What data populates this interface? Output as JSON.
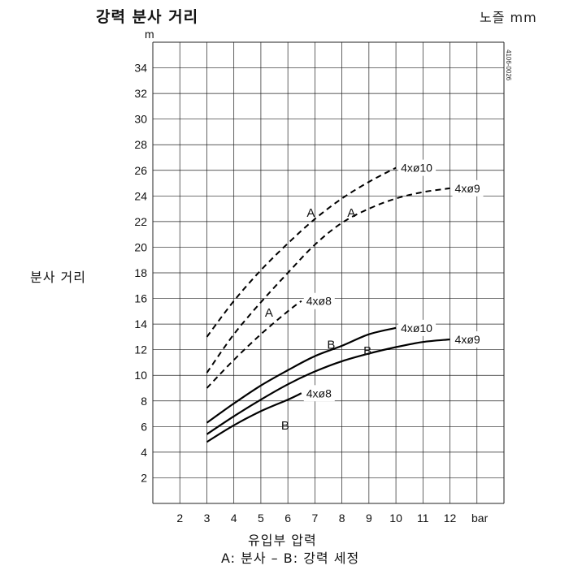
{
  "title": "강력 분사 거리",
  "unit_note": "노즐  mm",
  "y_unit": "m",
  "x_unit": "bar",
  "y_axis_label": "분사 거리",
  "x_axis_label": "유입부 압력",
  "legend_note": "A: 분사 – B: 강력 세정",
  "figure_code": "4106-0026",
  "chart_data": {
    "type": "line",
    "xlim": [
      1,
      14
    ],
    "ylim": [
      0,
      36
    ],
    "x_ticks": [
      2,
      3,
      4,
      5,
      6,
      7,
      8,
      9,
      10,
      11,
      12
    ],
    "y_ticks": [
      2,
      4,
      6,
      8,
      10,
      12,
      14,
      16,
      18,
      20,
      22,
      24,
      26,
      28,
      30,
      32,
      34
    ],
    "grid": true,
    "series": [
      {
        "name": "4xø10",
        "mode": "A",
        "style": "dashed",
        "x": [
          3,
          4,
          5,
          6,
          7,
          8,
          9,
          10
        ],
        "y": [
          13,
          15.8,
          18.2,
          20.3,
          22.2,
          23.8,
          25.1,
          26.2
        ]
      },
      {
        "name": "4xø9",
        "mode": "A",
        "style": "dashed",
        "x": [
          3,
          4,
          5,
          6,
          7,
          8,
          9,
          10,
          11,
          12
        ],
        "y": [
          10.2,
          13.2,
          15.7,
          18,
          20.2,
          21.9,
          23,
          23.8,
          24.3,
          24.6
        ]
      },
      {
        "name": "4xø8",
        "mode": "A",
        "style": "dashed",
        "x": [
          3,
          4,
          5,
          6,
          6.5
        ],
        "y": [
          9,
          11.2,
          13.2,
          15,
          15.8
        ]
      },
      {
        "name": "4xø10",
        "mode": "B",
        "style": "solid",
        "x": [
          3,
          4,
          5,
          6,
          7,
          8,
          9,
          10
        ],
        "y": [
          6.3,
          7.8,
          9.2,
          10.4,
          11.5,
          12.3,
          13.2,
          13.7
        ]
      },
      {
        "name": "4xø9",
        "mode": "B",
        "style": "solid",
        "x": [
          3,
          4,
          5,
          6,
          7,
          8,
          9,
          10,
          11,
          12
        ],
        "y": [
          5.4,
          6.8,
          8.1,
          9.3,
          10.3,
          11.1,
          11.7,
          12.2,
          12.6,
          12.8
        ]
      },
      {
        "name": "4xø8",
        "mode": "B",
        "style": "solid",
        "x": [
          3,
          4,
          5,
          6,
          6.5
        ],
        "y": [
          4.8,
          6.1,
          7.2,
          8.1,
          8.6
        ]
      }
    ],
    "annotations": [
      {
        "text": "A",
        "x": 6.85,
        "y": 22.7
      },
      {
        "text": "A",
        "x": 8.35,
        "y": 22.7
      },
      {
        "text": "A",
        "x": 5.3,
        "y": 14.9
      },
      {
        "text": "B",
        "x": 7.6,
        "y": 12.4
      },
      {
        "text": "B",
        "x": 8.95,
        "y": 11.9
      },
      {
        "text": "B",
        "x": 5.9,
        "y": 6.1
      }
    ]
  }
}
